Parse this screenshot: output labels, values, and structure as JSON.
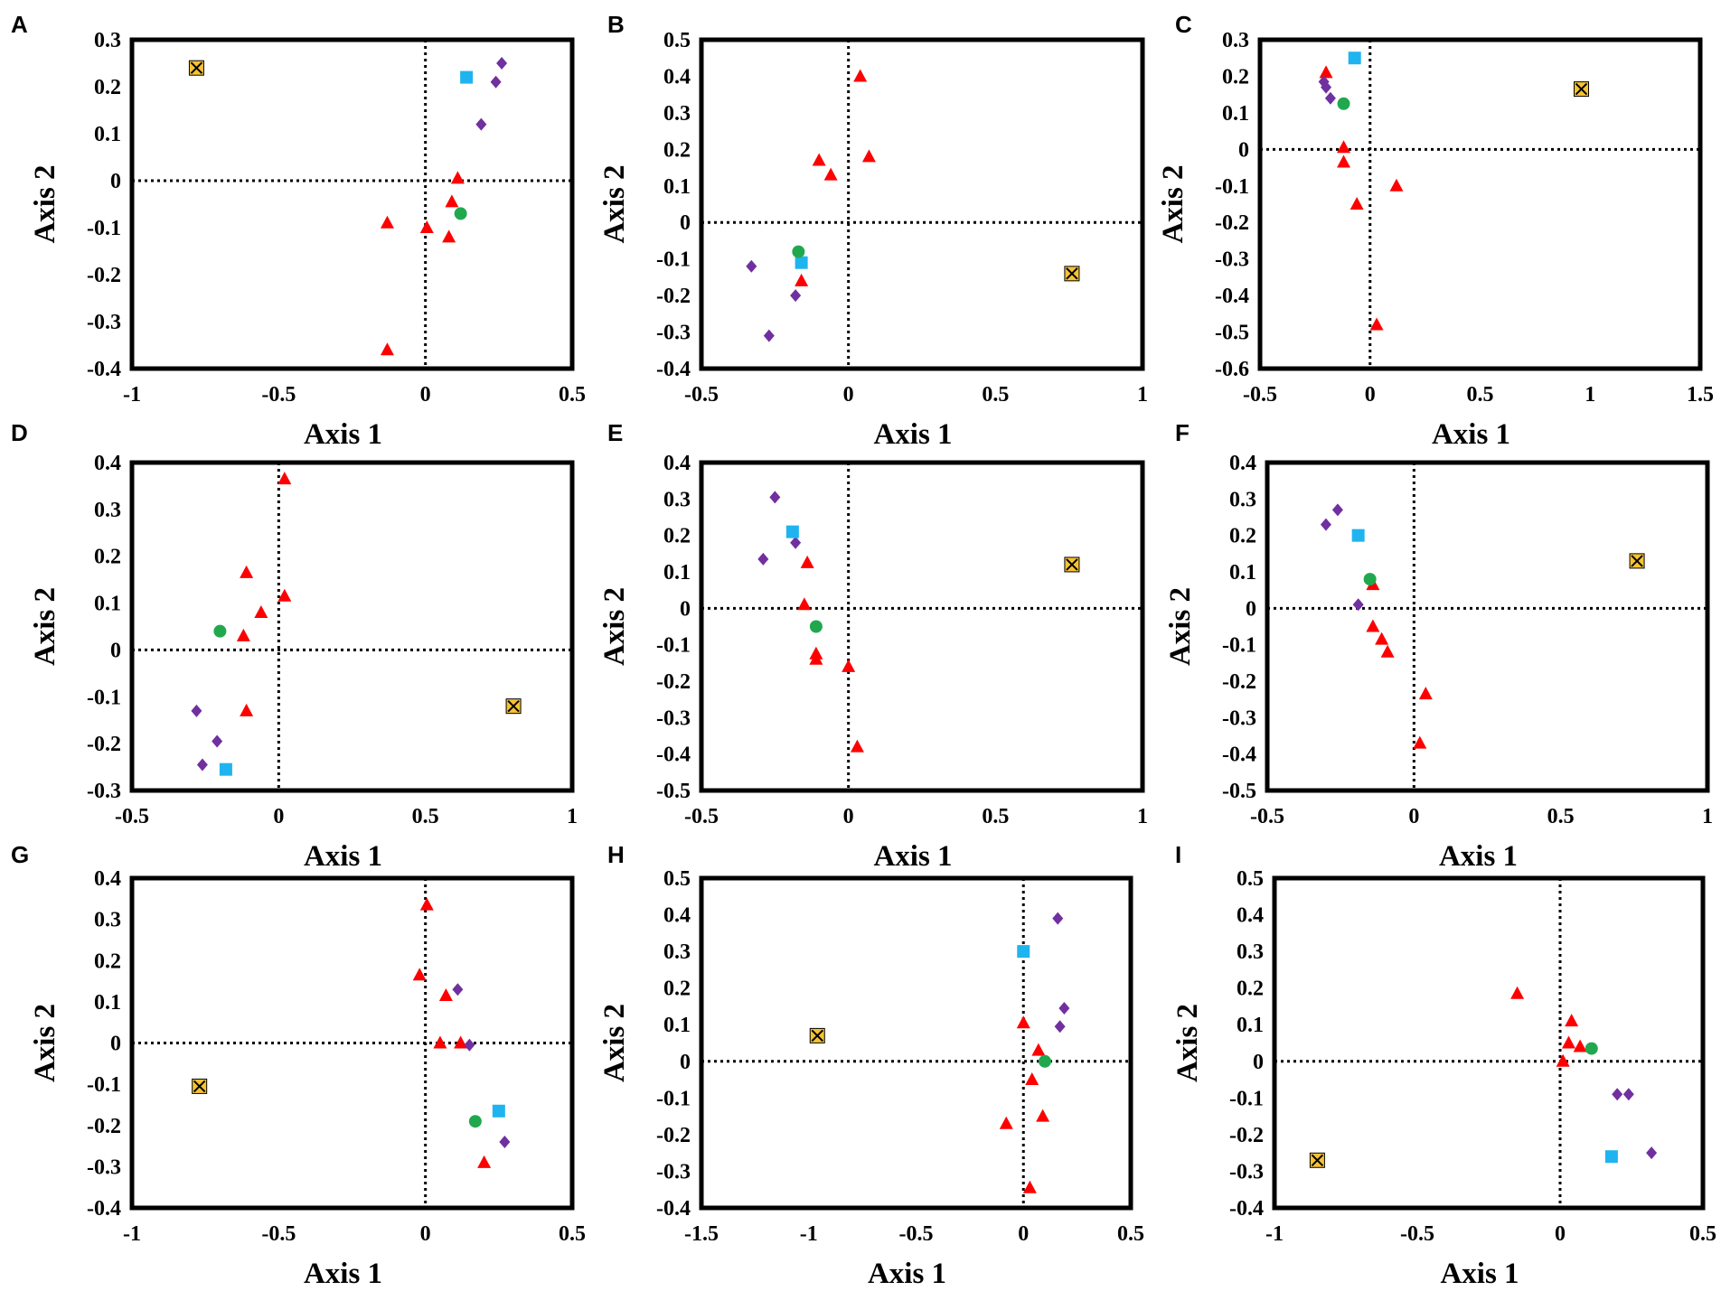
{
  "figure": {
    "colors": {
      "triangle": "#ff0000",
      "diamond": "#7030a0",
      "square": "#1fb4ef",
      "circle": "#21a84e",
      "xbox": "#f5c232",
      "frame": "#000000"
    },
    "marker_icons": [
      "triangle-marker",
      "diamond-marker",
      "square-marker",
      "circle-marker",
      "crossed-box-marker"
    ]
  },
  "chart_data": [
    {
      "type": "scatter",
      "panel": "A",
      "xlabel": "Axis 1",
      "ylabel": "Axis 2",
      "xlim": [
        -1,
        0.5
      ],
      "ylim": [
        -0.4,
        0.3
      ],
      "xticks": [
        "-1",
        "-0.5",
        "0",
        "0.5"
      ],
      "yticks": [
        "0.3",
        "0.2",
        "0.1",
        "0",
        "-0.1",
        "-0.2",
        "-0.3",
        "-0.4"
      ],
      "series": [
        {
          "name": "triangle",
          "points": [
            [
              0.11,
              0.005
            ],
            [
              0.09,
              -0.045
            ],
            [
              0.005,
              -0.1
            ],
            [
              0.08,
              -0.12
            ],
            [
              -0.13,
              -0.09
            ],
            [
              -0.13,
              -0.36
            ]
          ]
        },
        {
          "name": "diamond",
          "points": [
            [
              0.26,
              0.25
            ],
            [
              0.24,
              0.21
            ],
            [
              0.19,
              0.12
            ]
          ]
        },
        {
          "name": "square",
          "points": [
            [
              0.14,
              0.22
            ]
          ]
        },
        {
          "name": "circle",
          "points": [
            [
              0.12,
              -0.07
            ]
          ]
        },
        {
          "name": "xbox",
          "points": [
            [
              -0.78,
              0.24
            ]
          ]
        }
      ]
    },
    {
      "type": "scatter",
      "panel": "B",
      "xlabel": "Axis 1",
      "ylabel": "Axis 2",
      "xlim": [
        -0.5,
        1
      ],
      "ylim": [
        -0.4,
        0.5
      ],
      "xticks": [
        "-0.5",
        "0",
        "0.5",
        "1"
      ],
      "yticks": [
        "0.5",
        "0.4",
        "0.3",
        "0.2",
        "0.1",
        "0",
        "-0.1",
        "-0.2",
        "-0.3",
        "-0.4"
      ],
      "series": [
        {
          "name": "triangle",
          "points": [
            [
              0.04,
              0.4
            ],
            [
              0.07,
              0.18
            ],
            [
              -0.1,
              0.17
            ],
            [
              -0.06,
              0.13
            ],
            [
              -0.16,
              -0.16
            ]
          ]
        },
        {
          "name": "diamond",
          "points": [
            [
              -0.33,
              -0.12
            ],
            [
              -0.18,
              -0.2
            ],
            [
              -0.27,
              -0.31
            ]
          ]
        },
        {
          "name": "square",
          "points": [
            [
              -0.16,
              -0.11
            ]
          ]
        },
        {
          "name": "circle",
          "points": [
            [
              -0.17,
              -0.08
            ]
          ]
        },
        {
          "name": "xbox",
          "points": [
            [
              0.76,
              -0.14
            ]
          ]
        }
      ]
    },
    {
      "type": "scatter",
      "panel": "C",
      "xlabel": "Axis 1",
      "ylabel": "Axis 2",
      "xlim": [
        -0.5,
        1.5
      ],
      "ylim": [
        -0.6,
        0.3
      ],
      "xticks": [
        "-0.5",
        "0",
        "0.5",
        "1",
        "1.5"
      ],
      "yticks": [
        "0.3",
        "0.2",
        "0.1",
        "0",
        "-0.1",
        "-0.2",
        "-0.3",
        "-0.4",
        "-0.5",
        "-0.6"
      ],
      "series": [
        {
          "name": "triangle",
          "points": [
            [
              -0.2,
              0.21
            ],
            [
              -0.12,
              0.005
            ],
            [
              -0.12,
              -0.035
            ],
            [
              -0.06,
              -0.15
            ],
            [
              0.12,
              -0.1
            ],
            [
              0.03,
              -0.48
            ]
          ]
        },
        {
          "name": "diamond",
          "points": [
            [
              -0.21,
              0.185
            ],
            [
              -0.2,
              0.17
            ],
            [
              -0.18,
              0.14
            ]
          ]
        },
        {
          "name": "square",
          "points": [
            [
              -0.07,
              0.25
            ]
          ]
        },
        {
          "name": "circle",
          "points": [
            [
              -0.12,
              0.125
            ]
          ]
        },
        {
          "name": "xbox",
          "points": [
            [
              0.96,
              0.165
            ]
          ]
        }
      ]
    },
    {
      "type": "scatter",
      "panel": "D",
      "xlabel": "Axis 1",
      "ylabel": "Axis 2",
      "xlim": [
        -0.5,
        1
      ],
      "ylim": [
        -0.3,
        0.4
      ],
      "xticks": [
        "-0.5",
        "0",
        "0.5",
        "1"
      ],
      "yticks": [
        "0.4",
        "0.3",
        "0.2",
        "0.1",
        "0",
        "-0.1",
        "-0.2",
        "-0.3"
      ],
      "series": [
        {
          "name": "triangle",
          "points": [
            [
              0.02,
              0.365
            ],
            [
              -0.11,
              0.165
            ],
            [
              0.02,
              0.115
            ],
            [
              -0.06,
              0.08
            ],
            [
              -0.12,
              0.03
            ],
            [
              -0.11,
              -0.13
            ]
          ]
        },
        {
          "name": "diamond",
          "points": [
            [
              -0.28,
              -0.13
            ],
            [
              -0.21,
              -0.195
            ],
            [
              -0.26,
              -0.245
            ]
          ]
        },
        {
          "name": "square",
          "points": [
            [
              -0.18,
              -0.255
            ]
          ]
        },
        {
          "name": "circle",
          "points": [
            [
              -0.2,
              0.04
            ]
          ]
        },
        {
          "name": "xbox",
          "points": [
            [
              0.8,
              -0.12
            ]
          ]
        }
      ]
    },
    {
      "type": "scatter",
      "panel": "E",
      "xlabel": "Axis 1",
      "ylabel": "Axis 2",
      "xlim": [
        -0.5,
        1
      ],
      "ylim": [
        -0.5,
        0.4
      ],
      "xticks": [
        "-0.5",
        "0",
        "0.5",
        "1"
      ],
      "yticks": [
        "0.4",
        "0.3",
        "0.2",
        "0.1",
        "0",
        "-0.1",
        "-0.2",
        "-0.3",
        "-0.4",
        "-0.5"
      ],
      "series": [
        {
          "name": "triangle",
          "points": [
            [
              -0.14,
              0.125
            ],
            [
              -0.15,
              0.01
            ],
            [
              -0.11,
              -0.125
            ],
            [
              -0.11,
              -0.14
            ],
            [
              0.0,
              -0.16
            ],
            [
              0.03,
              -0.38
            ]
          ]
        },
        {
          "name": "diamond",
          "points": [
            [
              -0.25,
              0.305
            ],
            [
              -0.18,
              0.18
            ],
            [
              -0.29,
              0.135
            ]
          ]
        },
        {
          "name": "square",
          "points": [
            [
              -0.19,
              0.21
            ]
          ]
        },
        {
          "name": "circle",
          "points": [
            [
              -0.11,
              -0.05
            ]
          ]
        },
        {
          "name": "xbox",
          "points": [
            [
              0.76,
              0.12
            ]
          ]
        }
      ]
    },
    {
      "type": "scatter",
      "panel": "F",
      "xlabel": "Axis 1",
      "ylabel": "Axis 2",
      "xlim": [
        -0.5,
        1
      ],
      "ylim": [
        -0.5,
        0.4
      ],
      "xticks": [
        "-0.5",
        "0",
        "0.5",
        "1"
      ],
      "yticks": [
        "0.4",
        "0.3",
        "0.2",
        "0.1",
        "0",
        "-0.1",
        "-0.2",
        "-0.3",
        "-0.4",
        "-0.5"
      ],
      "series": [
        {
          "name": "triangle",
          "points": [
            [
              -0.14,
              0.065
            ],
            [
              -0.14,
              -0.05
            ],
            [
              -0.11,
              -0.085
            ],
            [
              -0.09,
              -0.12
            ],
            [
              0.04,
              -0.235
            ],
            [
              0.02,
              -0.37
            ]
          ]
        },
        {
          "name": "diamond",
          "points": [
            [
              -0.26,
              0.27
            ],
            [
              -0.3,
              0.23
            ],
            [
              -0.19,
              0.01
            ]
          ]
        },
        {
          "name": "square",
          "points": [
            [
              -0.19,
              0.2
            ]
          ]
        },
        {
          "name": "circle",
          "points": [
            [
              -0.15,
              0.08
            ]
          ]
        },
        {
          "name": "xbox",
          "points": [
            [
              0.76,
              0.13
            ]
          ]
        }
      ]
    },
    {
      "type": "scatter",
      "panel": "G",
      "xlabel": "Axis 1",
      "ylabel": "Axis 2",
      "xlim": [
        -1,
        0.5
      ],
      "ylim": [
        -0.4,
        0.4
      ],
      "xticks": [
        "-1",
        "-0.5",
        "0",
        "0.5"
      ],
      "yticks": [
        "0.4",
        "0.3",
        "0.2",
        "0.1",
        "0",
        "-0.1",
        "-0.2",
        "-0.3",
        "-0.4"
      ],
      "series": [
        {
          "name": "triangle",
          "points": [
            [
              0.005,
              0.335
            ],
            [
              -0.02,
              0.165
            ],
            [
              0.07,
              0.115
            ],
            [
              0.05,
              0.0
            ],
            [
              0.12,
              0.0
            ],
            [
              0.2,
              -0.29
            ]
          ]
        },
        {
          "name": "diamond",
          "points": [
            [
              0.11,
              0.13
            ],
            [
              0.15,
              -0.005
            ],
            [
              0.27,
              -0.24
            ]
          ]
        },
        {
          "name": "square",
          "points": [
            [
              0.25,
              -0.165
            ]
          ]
        },
        {
          "name": "circle",
          "points": [
            [
              0.17,
              -0.19
            ]
          ]
        },
        {
          "name": "xbox",
          "points": [
            [
              -0.77,
              -0.105
            ]
          ]
        }
      ]
    },
    {
      "type": "scatter",
      "panel": "H",
      "xlabel": "Axis 1",
      "ylabel": "Axis 2",
      "xlim": [
        -1.5,
        0.5
      ],
      "ylim": [
        -0.4,
        0.5
      ],
      "xticks": [
        "-1.5",
        "-1",
        "-0.5",
        "0",
        "0.5"
      ],
      "yticks": [
        "0.5",
        "0.4",
        "0.3",
        "0.2",
        "0.1",
        "0",
        "-0.1",
        "-0.2",
        "-0.3",
        "-0.4"
      ],
      "series": [
        {
          "name": "triangle",
          "points": [
            [
              0.0,
              0.105
            ],
            [
              0.07,
              0.03
            ],
            [
              0.04,
              -0.05
            ],
            [
              0.09,
              -0.15
            ],
            [
              -0.08,
              -0.17
            ],
            [
              0.03,
              -0.345
            ]
          ]
        },
        {
          "name": "diamond",
          "points": [
            [
              0.16,
              0.39
            ],
            [
              0.19,
              0.145
            ],
            [
              0.17,
              0.095
            ]
          ]
        },
        {
          "name": "square",
          "points": [
            [
              0.0,
              0.3
            ]
          ]
        },
        {
          "name": "circle",
          "points": [
            [
              0.1,
              0.0
            ]
          ]
        },
        {
          "name": "xbox",
          "points": [
            [
              -0.96,
              0.07
            ]
          ]
        }
      ]
    },
    {
      "type": "scatter",
      "panel": "I",
      "xlabel": "Axis 1",
      "ylabel": "Axis 2",
      "xlim": [
        -1,
        0.5
      ],
      "ylim": [
        -0.4,
        0.5
      ],
      "xticks": [
        "-1",
        "-0.5",
        "0",
        "0.5"
      ],
      "yticks": [
        "0.5",
        "0.4",
        "0.3",
        "0.2",
        "0.1",
        "0",
        "-0.1",
        "-0.2",
        "-0.3",
        "-0.4"
      ],
      "series": [
        {
          "name": "triangle",
          "points": [
            [
              -0.15,
              0.185
            ],
            [
              0.04,
              0.11
            ],
            [
              0.03,
              0.05
            ],
            [
              0.07,
              0.04
            ],
            [
              0.01,
              0.0
            ]
          ]
        },
        {
          "name": "diamond",
          "points": [
            [
              0.2,
              -0.09
            ],
            [
              0.24,
              -0.09
            ],
            [
              0.32,
              -0.25
            ]
          ]
        },
        {
          "name": "square",
          "points": [
            [
              0.18,
              -0.26
            ]
          ]
        },
        {
          "name": "circle",
          "points": [
            [
              0.11,
              0.035
            ]
          ]
        },
        {
          "name": "xbox",
          "points": [
            [
              -0.85,
              -0.27
            ]
          ]
        }
      ]
    }
  ]
}
